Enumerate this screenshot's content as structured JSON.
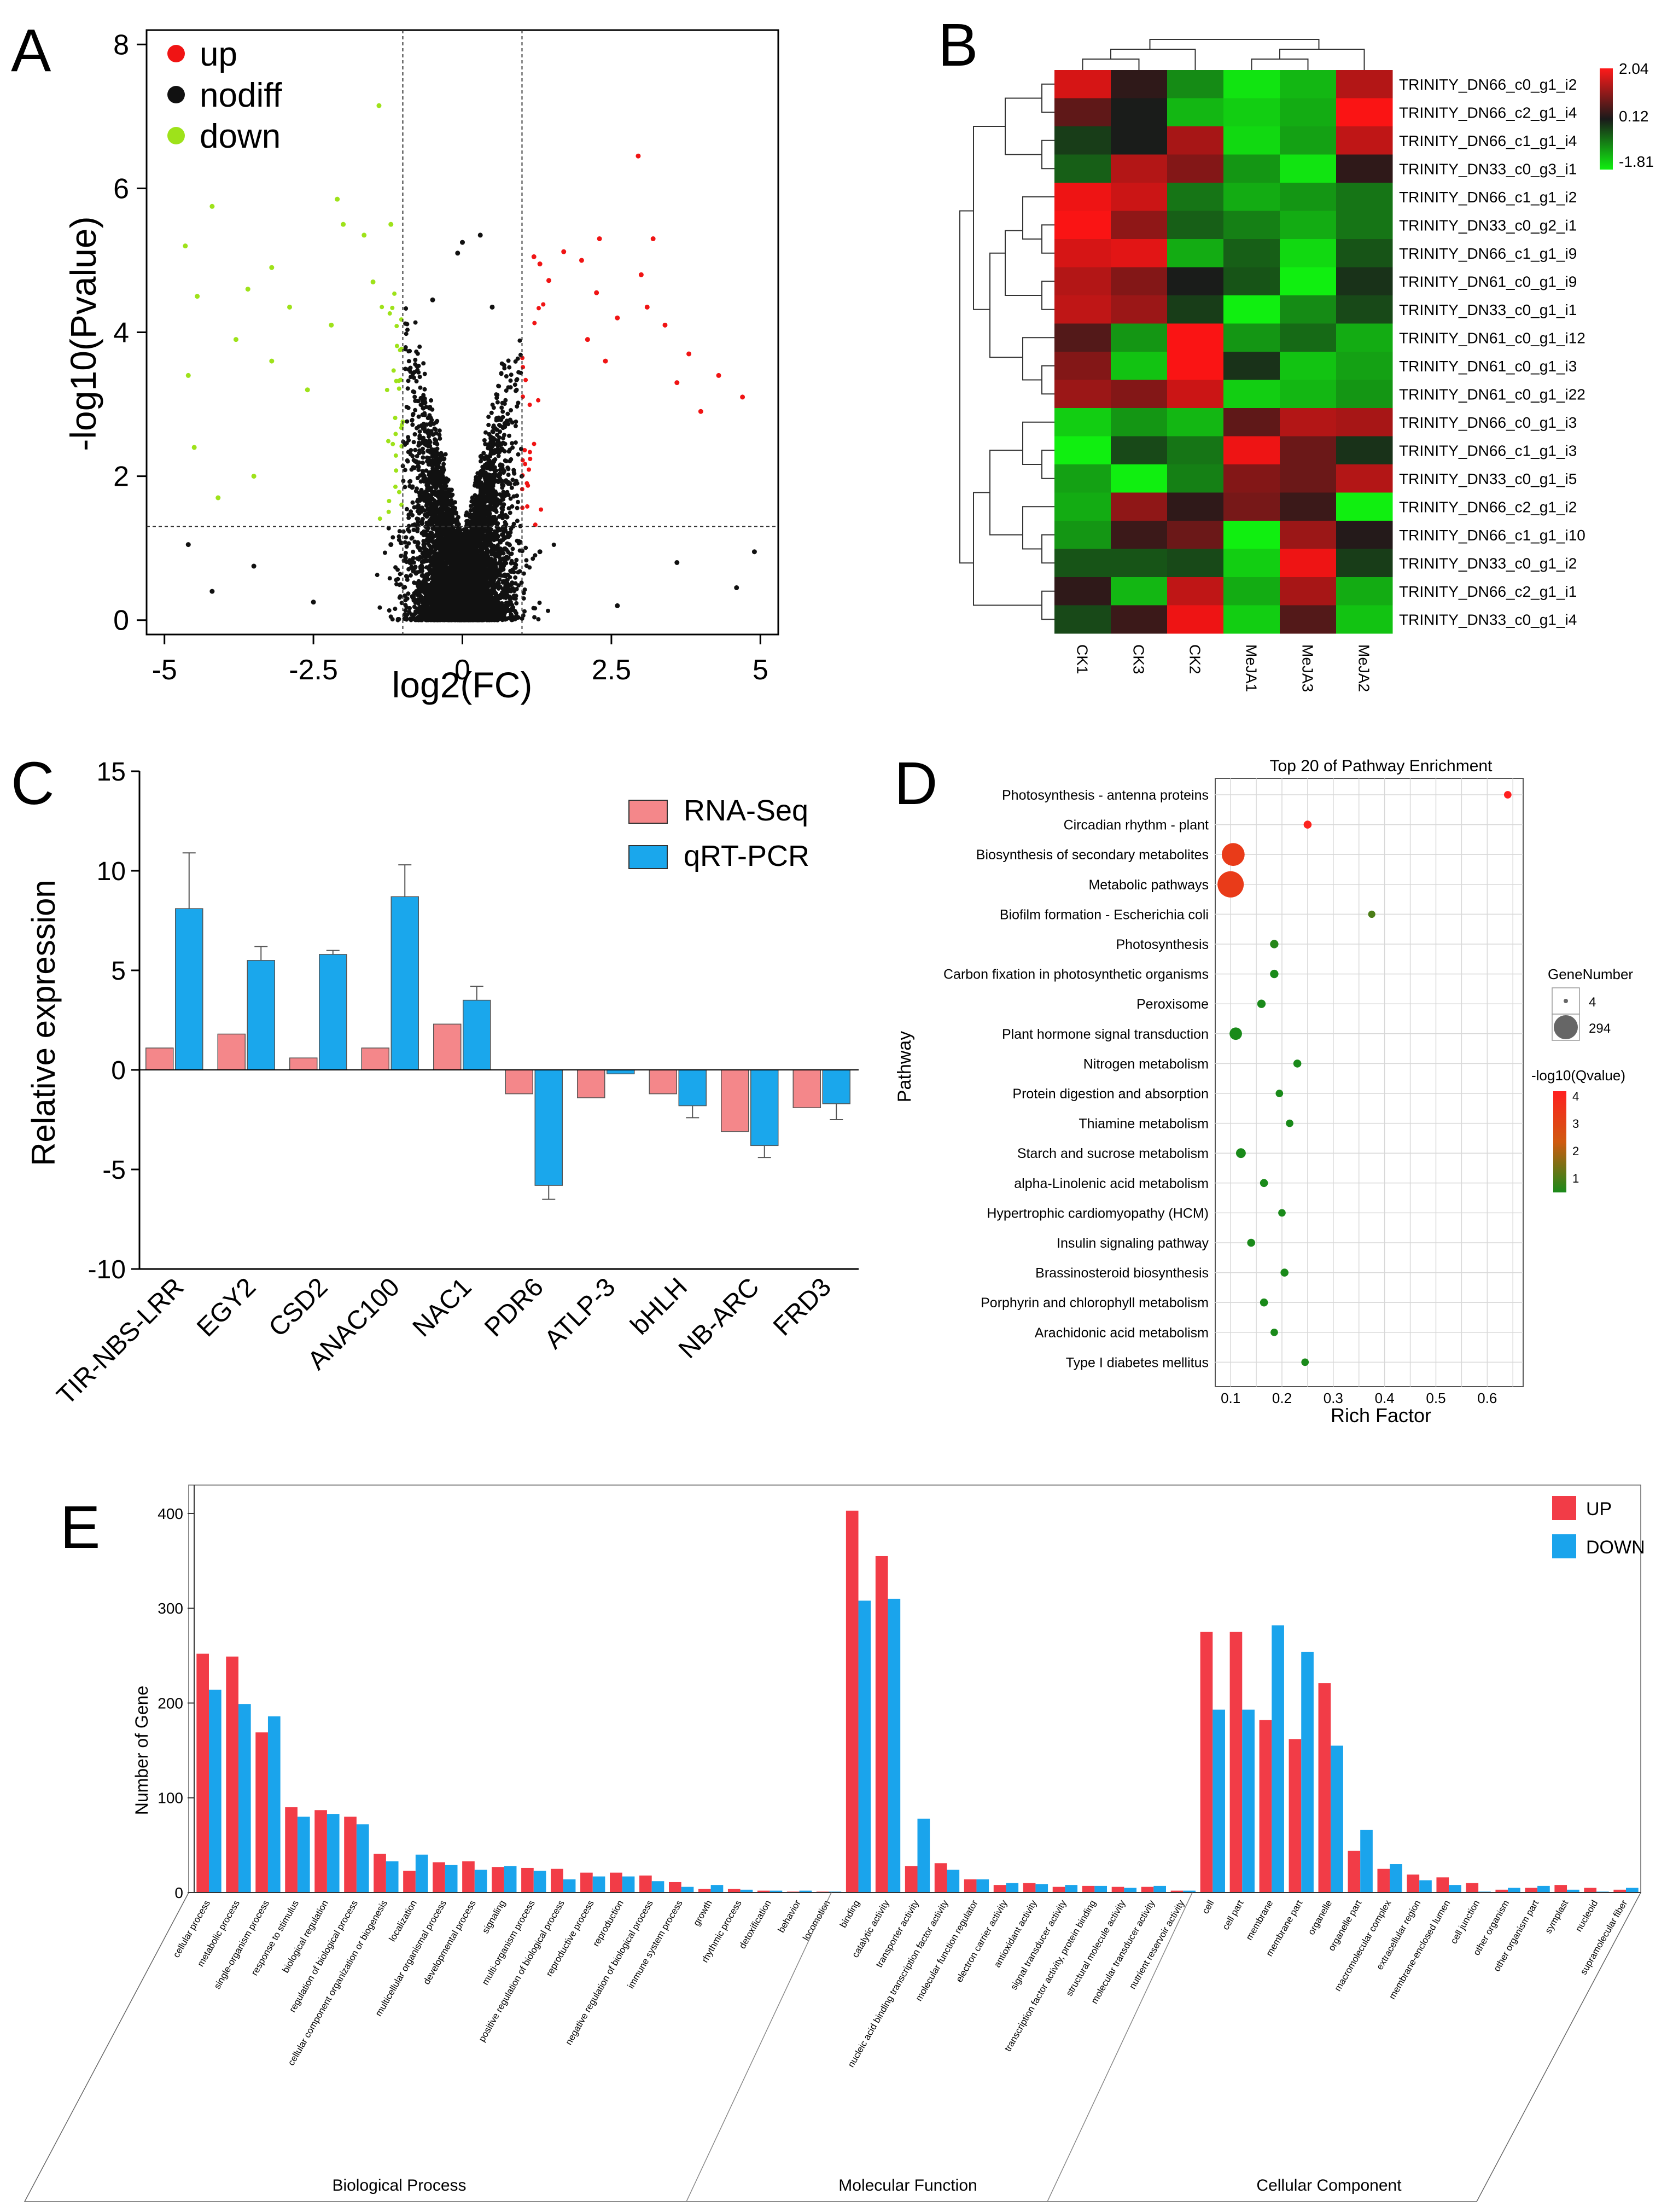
{
  "panels": {
    "A": "A",
    "B": "B",
    "C": "C",
    "D": "D",
    "E": "E"
  },
  "chart_data": [
    {
      "id": "A",
      "type": "scatter",
      "title": "",
      "xlabel": "log2(FC)",
      "ylabel": "-log10(Pvalue)",
      "xlim": [
        -5.3,
        5.3
      ],
      "ylim": [
        -0.2,
        8.2
      ],
      "xticks": [
        -5,
        -2.5,
        0,
        2.5,
        5
      ],
      "xtick_labels": [
        "-5",
        "-2.5",
        "0",
        "2.5",
        "5"
      ],
      "yticks": [
        0,
        2,
        4,
        6,
        8
      ],
      "ytick_labels": [
        "0",
        "2",
        "4",
        "6",
        "8"
      ],
      "thresholds": {
        "fc": [
          -1,
          1
        ],
        "pvalue": 1.3
      },
      "legend": [
        {
          "label": "up",
          "color": "#f01414"
        },
        {
          "label": "nodiff",
          "color": "#111111"
        },
        {
          "label": "down",
          "color": "#9ee21a"
        }
      ],
      "points": {
        "up": [
          [
            1.45,
            4.72
          ],
          [
            1.7,
            5.12
          ],
          [
            2.0,
            5.0
          ],
          [
            2.25,
            4.55
          ],
          [
            2.6,
            4.2
          ],
          [
            3.0,
            4.8
          ],
          [
            3.1,
            4.35
          ],
          [
            2.3,
            5.3
          ],
          [
            3.4,
            4.1
          ],
          [
            3.8,
            3.7
          ],
          [
            4.3,
            3.4
          ],
          [
            4.7,
            3.1
          ],
          [
            1.2,
            5.05
          ],
          [
            1.3,
            4.95
          ],
          [
            2.95,
            6.45
          ],
          [
            3.2,
            5.3
          ],
          [
            2.1,
            3.9
          ],
          [
            2.4,
            3.6
          ],
          [
            3.6,
            3.3
          ],
          [
            4.0,
            2.9
          ]
        ],
        "nodiff": [
          [
            0.0,
            5.25
          ],
          [
            -0.08,
            5.1
          ],
          [
            0.3,
            5.35
          ],
          [
            -0.5,
            4.45
          ],
          [
            0.5,
            4.35
          ],
          [
            -1.2,
            1.05
          ],
          [
            1.3,
            0.95
          ],
          [
            -3.5,
            0.75
          ],
          [
            3.6,
            0.8
          ],
          [
            -4.6,
            1.05
          ],
          [
            4.9,
            0.95
          ],
          [
            -4.2,
            0.4
          ],
          [
            4.6,
            0.45
          ],
          [
            -2.5,
            0.25
          ],
          [
            2.6,
            0.2
          ]
        ],
        "down": [
          [
            -1.4,
            7.15
          ],
          [
            -1.65,
            5.35
          ],
          [
            -2.0,
            5.5
          ],
          [
            -2.1,
            5.85
          ],
          [
            -3.2,
            4.9
          ],
          [
            -3.6,
            4.6
          ],
          [
            -4.2,
            5.75
          ],
          [
            -4.65,
            5.2
          ],
          [
            -4.45,
            4.5
          ],
          [
            -4.6,
            3.4
          ],
          [
            -4.5,
            2.4
          ],
          [
            -3.8,
            3.9
          ],
          [
            -2.9,
            4.35
          ],
          [
            -2.2,
            4.1
          ],
          [
            -1.5,
            4.7
          ],
          [
            -4.1,
            1.7
          ],
          [
            -3.5,
            2.0
          ],
          [
            -2.6,
            3.2
          ],
          [
            -1.2,
            5.5
          ],
          [
            -3.2,
            3.6
          ]
        ]
      }
    },
    {
      "id": "B",
      "type": "heatmap",
      "columns": [
        "CK1",
        "CK3",
        "CK2",
        "MeJA1",
        "MeJA3",
        "MeJA2"
      ],
      "rows": [
        "TRINITY_DN66_c0_g1_i2",
        "TRINITY_DN66_c2_g1_i4",
        "TRINITY_DN66_c1_g1_i4",
        "TRINITY_DN33_c0_g3_i1",
        "TRINITY_DN66_c1_g1_i2",
        "TRINITY_DN33_c0_g2_i1",
        "TRINITY_DN66_c1_g1_i9",
        "TRINITY_DN61_c0_g1_i9",
        "TRINITY_DN33_c0_g1_i1",
        "TRINITY_DN61_c0_g1_i12",
        "TRINITY_DN61_c0_g1_i3",
        "TRINITY_DN61_c0_g1_i22",
        "TRINITY_DN66_c0_g1_i3",
        "TRINITY_DN66_c1_g1_i3",
        "TRINITY_DN33_c0_g1_i5",
        "TRINITY_DN66_c2_g1_i2",
        "TRINITY_DN66_c1_g1_i10",
        "TRINITY_DN33_c0_g1_i2",
        "TRINITY_DN66_c2_g1_i1",
        "TRINITY_DN33_c0_g1_i4"
      ],
      "values": [
        [
          1.7,
          0.3,
          -0.9,
          -1.7,
          -1.3,
          1.4
        ],
        [
          0.7,
          0.1,
          -1.3,
          -1.5,
          -1.2,
          2.0
        ],
        [
          -0.2,
          0.1,
          1.3,
          -1.6,
          -1.1,
          1.5
        ],
        [
          -0.5,
          1.4,
          1.0,
          -1.0,
          -1.7,
          0.3
        ],
        [
          1.9,
          1.6,
          -0.7,
          -1.2,
          -1.0,
          -0.7
        ],
        [
          2.0,
          1.1,
          -0.5,
          -0.8,
          -1.2,
          -0.7
        ],
        [
          1.7,
          1.8,
          -1.2,
          -0.5,
          -1.6,
          -0.4
        ],
        [
          1.4,
          1.0,
          0.1,
          -0.4,
          -1.8,
          -0.1
        ],
        [
          1.5,
          1.2,
          -0.2,
          -1.8,
          -0.9,
          -0.3
        ],
        [
          0.6,
          -1.0,
          2.0,
          -1.0,
          -0.6,
          -1.2
        ],
        [
          1.0,
          -1.4,
          2.0,
          -0.1,
          -1.4,
          -1.1
        ],
        [
          1.2,
          1.0,
          1.6,
          -1.5,
          -1.3,
          -1.0
        ],
        [
          -1.5,
          -1.0,
          -1.3,
          0.7,
          1.4,
          1.3
        ],
        [
          -1.8,
          -0.3,
          -0.7,
          1.9,
          0.8,
          -0.1
        ],
        [
          -1.1,
          -1.8,
          -0.8,
          1.0,
          0.8,
          1.4
        ],
        [
          -1.2,
          1.1,
          0.3,
          0.9,
          0.4,
          -1.8
        ],
        [
          -1.0,
          0.4,
          0.8,
          -1.8,
          1.2,
          0.2
        ],
        [
          -0.4,
          -0.4,
          -0.3,
          -1.5,
          1.9,
          -0.2
        ],
        [
          0.3,
          -1.3,
          1.5,
          -1.2,
          1.3,
          -1.2
        ],
        [
          -0.3,
          0.4,
          1.9,
          -1.5,
          0.6,
          -1.4
        ]
      ],
      "colorbar": {
        "max": 2.04,
        "mid": 0.12,
        "min": -1.81,
        "labels": [
          "2.04",
          "0.12",
          "-1.81"
        ]
      }
    },
    {
      "id": "C",
      "type": "bar",
      "title": "",
      "xlabel": "",
      "ylabel": "Relative expression",
      "ylim": [
        -10,
        15
      ],
      "yticks": [
        -10,
        -5,
        0,
        5,
        10,
        15
      ],
      "ytick_labels": [
        "-10",
        "-5",
        "0",
        "5",
        "10",
        "15"
      ],
      "categories": [
        "TIR-NBS-LRR",
        "EGY2",
        "CSD2",
        "ANAC100",
        "NAC1",
        "PDR6",
        "ATLP-3",
        "bHLH",
        "NB-ARC",
        "FRD3"
      ],
      "series": [
        {
          "name": "RNA-Seq",
          "color": "#f4878a",
          "values": [
            1.1,
            1.8,
            0.6,
            1.1,
            2.3,
            -1.2,
            -1.4,
            -1.2,
            -3.1,
            -1.9
          ],
          "errors": [
            0,
            0,
            0,
            0,
            0,
            0,
            0,
            0,
            0,
            0
          ]
        },
        {
          "name": "qRT-PCR",
          "color": "#1aa7ec",
          "values": [
            8.1,
            5.5,
            5.8,
            8.7,
            3.5,
            -5.8,
            -0.2,
            -1.8,
            -3.8,
            -1.7
          ],
          "errors": [
            2.8,
            0.7,
            0.2,
            1.6,
            0.7,
            0.7,
            0,
            0.6,
            0.6,
            0.8
          ]
        }
      ]
    },
    {
      "id": "D",
      "type": "scatter",
      "title": "Top 20 of Pathway Enrichment",
      "xlabel": "Rich Factor",
      "ylabel": "Pathway",
      "xlim": [
        0.07,
        0.67
      ],
      "xticks": [
        0.1,
        0.2,
        0.3,
        0.4,
        0.5,
        0.6
      ],
      "xtick_labels": [
        "0.1",
        "0.2",
        "0.3",
        "0.4",
        "0.5",
        "0.6"
      ],
      "pathways": [
        "Photosynthesis - antenna proteins",
        "Circadian rhythm - plant",
        "Biosynthesis of secondary metabolites",
        "Metabolic pathways",
        "Biofilm formation - Escherichia coli",
        "Photosynthesis",
        "Carbon fixation in photosynthetic organisms",
        "Peroxisome",
        "Plant hormone signal transduction",
        "Nitrogen metabolism",
        "Protein digestion and absorption",
        "Thiamine metabolism",
        "Starch and sucrose metabolism",
        "alpha-Linolenic acid metabolism",
        "Hypertrophic cardiomyopathy (HCM)",
        "Insulin signaling pathway",
        "Brassinosteroid biosynthesis",
        "Porphyrin and chlorophyll metabolism",
        "Arachidonic acid metabolism",
        "Type I diabetes mellitus"
      ],
      "rich_factor": [
        0.64,
        0.25,
        0.105,
        0.1,
        0.375,
        0.185,
        0.185,
        0.16,
        0.11,
        0.23,
        0.195,
        0.215,
        0.12,
        0.165,
        0.2,
        0.14,
        0.205,
        0.165,
        0.185,
        0.245
      ],
      "gene_number": [
        6,
        8,
        210,
        294,
        5,
        10,
        10,
        10,
        40,
        8,
        6,
        6,
        18,
        8,
        6,
        8,
        8,
        8,
        6,
        6
      ],
      "neg_log10_q": [
        4.2,
        3.9,
        3.3,
        3.3,
        1.4,
        1.1,
        1.0,
        1.0,
        0.9,
        0.9,
        0.9,
        0.9,
        0.9,
        0.9,
        0.9,
        0.9,
        0.9,
        0.9,
        0.9,
        0.9
      ],
      "legend_size": {
        "title": "GeneNumber",
        "values": [
          4,
          294
        ],
        "labels": [
          "4",
          "294"
        ]
      },
      "legend_color": {
        "title": "-log10(Qvalue)",
        "labels": [
          "4",
          "3",
          "2",
          "1"
        ],
        "values": [
          4,
          3,
          2,
          1
        ]
      }
    },
    {
      "id": "E",
      "type": "bar",
      "title": "",
      "xlabel": "",
      "ylabel": "Number of Gene",
      "ylim": [
        0,
        430
      ],
      "yticks": [
        0,
        100,
        200,
        300,
        400
      ],
      "ytick_labels": [
        "0",
        "100",
        "200",
        "300",
        "400"
      ],
      "categories": [
        "cellular process",
        "metabolic process",
        "single-organism process",
        "response to stimulus",
        "biological regulation",
        "regulation of biological process",
        "cellular component organization or biogenesis",
        "localization",
        "multicellular organismal process",
        "developmental process",
        "signaling",
        "multi-organism process",
        "positive regulation of biological process",
        "reproductive process",
        "reproduction",
        "negative regulation of biological process",
        "immune system process",
        "growth",
        "rhythmic process",
        "detoxification",
        "behavior",
        "locomotion",
        "binding",
        "catalytic activity",
        "transporter activity",
        "nucleic acid binding transcription factor activity",
        "molecular function regulator",
        "electron carrier activity",
        "antioxidant activity",
        "signal transducer activity",
        "transcription factor activity, protein binding",
        "structural molecule activity",
        "molecular transducer activity",
        "nutrient reservoir activity",
        "cell",
        "cell part",
        "membrane",
        "membrane part",
        "organelle",
        "organelle part",
        "macromolecular complex",
        "extracellular region",
        "membrane-enclosed lumen",
        "cell junction",
        "other organism",
        "other organism part",
        "symplast",
        "nucleoid",
        "supramolecular fiber"
      ],
      "groups": [
        {
          "label": "Biological Process",
          "start": 0,
          "end": 21
        },
        {
          "label": "Molecular Function",
          "start": 22,
          "end": 33
        },
        {
          "label": "Cellular Component",
          "start": 34,
          "end": 48
        }
      ],
      "series": [
        {
          "name": "UP",
          "color": "#f23c47",
          "values": [
            252,
            249,
            169,
            90,
            87,
            80,
            41,
            23,
            32,
            33,
            27,
            26,
            25,
            21,
            21,
            18,
            11,
            4,
            4,
            2,
            1,
            1,
            403,
            355,
            28,
            31,
            14,
            8,
            10,
            6,
            7,
            6,
            6,
            2,
            275,
            275,
            182,
            162,
            221,
            44,
            25,
            19,
            16,
            10,
            3,
            5,
            8,
            5,
            3
          ]
        },
        {
          "name": "DOWN",
          "color": "#1aa4ec",
          "values": [
            214,
            199,
            186,
            80,
            83,
            72,
            33,
            40,
            29,
            24,
            28,
            23,
            14,
            17,
            17,
            12,
            6,
            8,
            3,
            2,
            2,
            1,
            308,
            310,
            78,
            24,
            14,
            10,
            9,
            8,
            7,
            5,
            7,
            2,
            193,
            193,
            282,
            254,
            155,
            66,
            30,
            13,
            8,
            1,
            5,
            7,
            3,
            1,
            5
          ]
        }
      ]
    }
  ]
}
